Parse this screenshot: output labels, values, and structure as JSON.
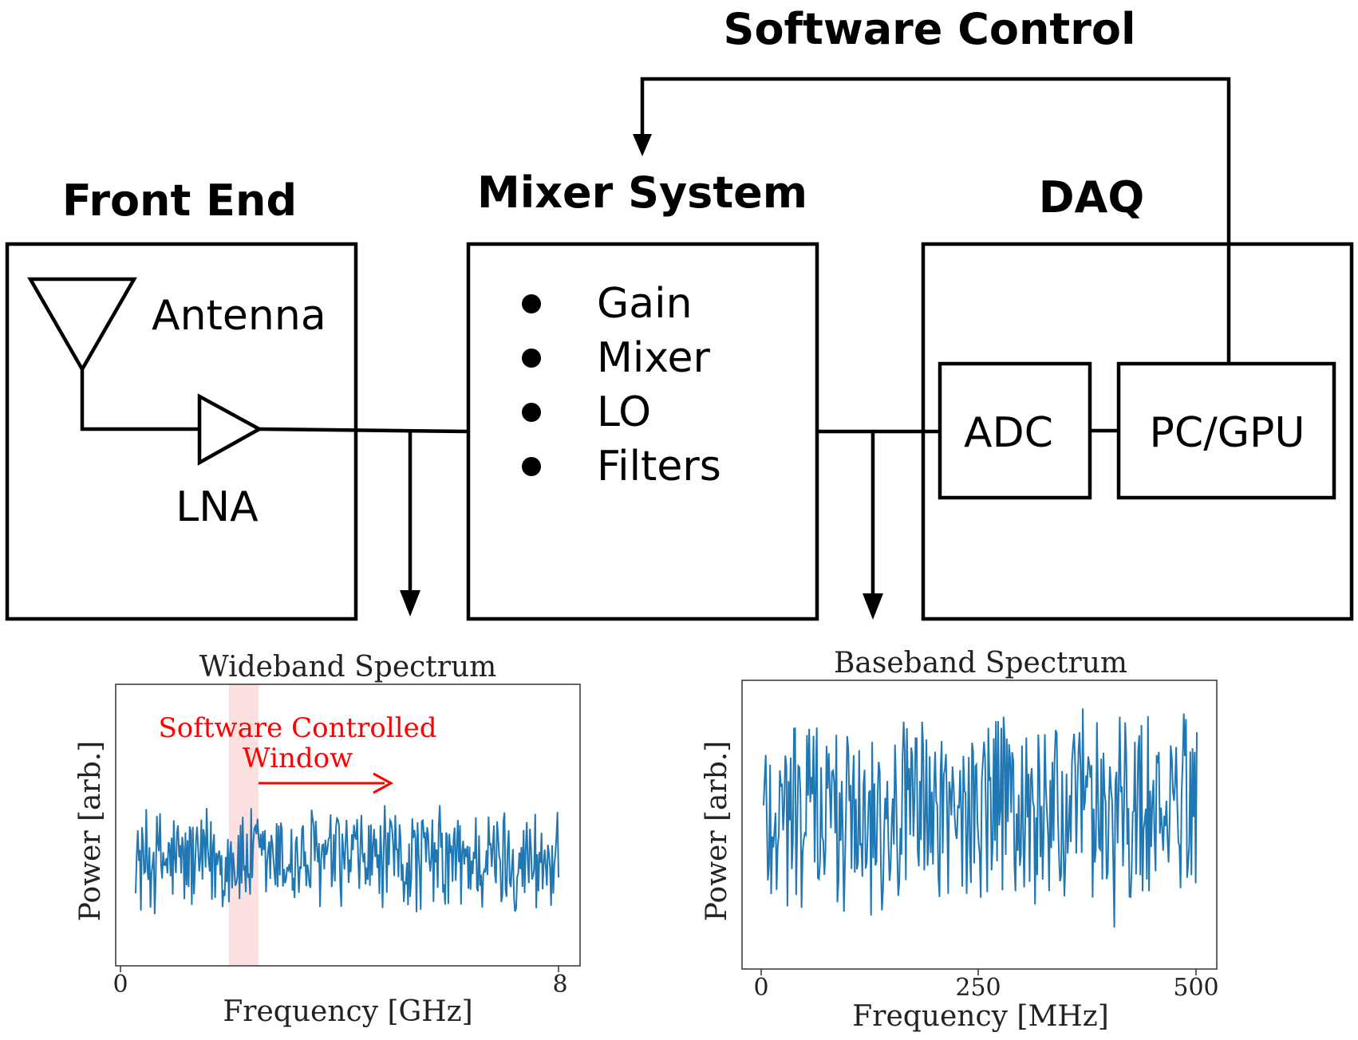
{
  "diagram": {
    "software_control_label": "Software Control",
    "front_end": {
      "title": "Front End",
      "antenna_label": "Antenna",
      "lna_label": "LNA"
    },
    "mixer_system": {
      "title": "Mixer System",
      "items": [
        "Gain",
        "Mixer",
        "LO",
        "Filters"
      ]
    },
    "daq": {
      "title": "DAQ",
      "adc_label": "ADC",
      "pc_label": "PC/GPU"
    }
  },
  "chart_data": [
    {
      "type": "line",
      "title": "Wideband Spectrum",
      "xlabel": "Frequency [GHz]",
      "ylabel": "Power [arb.]",
      "xticks": [
        "0",
        "8"
      ],
      "xlim": [
        0,
        8
      ],
      "annotation": {
        "text_line1": "Software Controlled",
        "text_line2": "Window",
        "color": "#ff0000"
      },
      "highlight_window_ghz": [
        2.0,
        2.55
      ],
      "highlight_color": "#fde0e0",
      "line_color": "#1f77b4",
      "y_baseline": 0.55,
      "y_noise_amplitude": 0.35,
      "n_points": 400
    },
    {
      "type": "line",
      "title": "Baseband Spectrum",
      "xlabel": "Frequency [MHz]",
      "ylabel": "Power [arb.]",
      "xticks": [
        "0",
        "250",
        "500"
      ],
      "xlim": [
        0,
        500
      ],
      "line_color": "#1f77b4",
      "y_baseline": 0.55,
      "y_noise_amplitude": 0.45,
      "n_points": 400
    }
  ]
}
